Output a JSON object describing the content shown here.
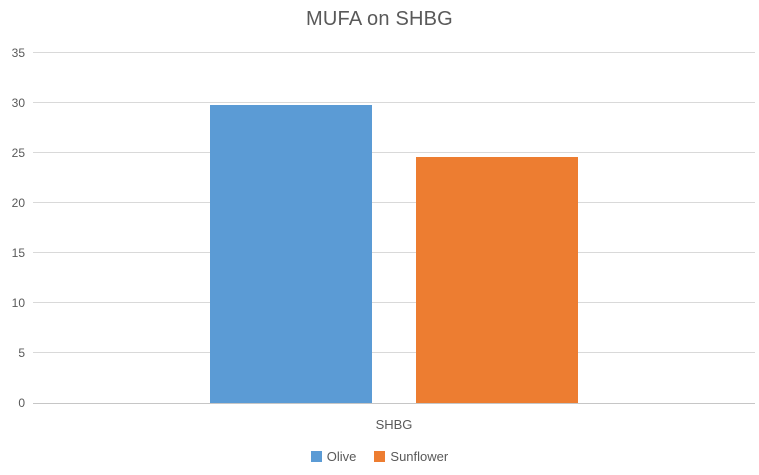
{
  "chart_data": {
    "type": "bar",
    "title": "MUFA on SHBG",
    "categories": [
      "SHBG"
    ],
    "series": [
      {
        "name": "Olive",
        "values": [
          29.8
        ],
        "color": "#5B9BD5"
      },
      {
        "name": "Sunflower",
        "values": [
          24.6
        ],
        "color": "#ED7D31"
      }
    ],
    "xlabel": "",
    "ylabel": "",
    "ylim": [
      0,
      35
    ],
    "yticks": [
      0,
      5,
      10,
      15,
      20,
      25,
      30,
      35
    ],
    "grid": "horizontal",
    "legend_position": "bottom"
  },
  "colors": {
    "title_text": "#595959",
    "axis_text": "#595959",
    "gridline": "#D9D9D9",
    "axis_line": "#C6C6C6",
    "background": "#FFFFFF"
  }
}
